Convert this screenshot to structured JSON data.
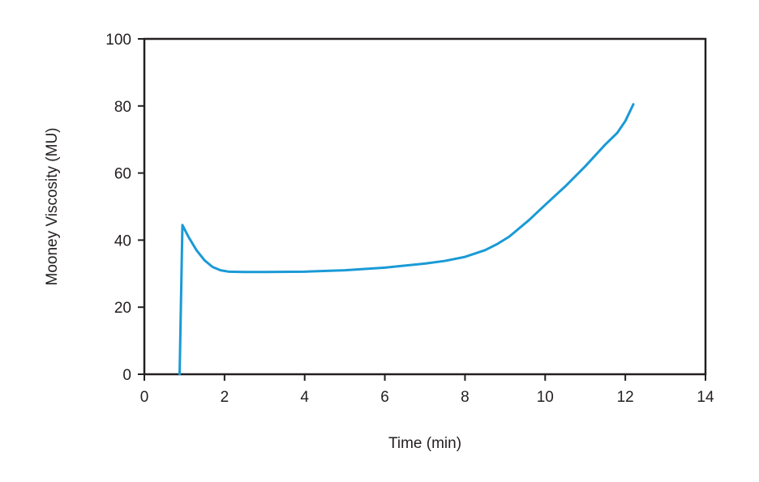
{
  "chart_data": {
    "type": "line",
    "title": "",
    "xlabel": "Time (min)",
    "ylabel": "Mooney Viscosity (MU)",
    "xlim": [
      0,
      14
    ],
    "ylim": [
      0,
      100
    ],
    "x_ticks": [
      "0",
      "2",
      "4",
      "6",
      "8",
      "10",
      "12",
      "14"
    ],
    "y_ticks": [
      "0",
      "20",
      "40",
      "60",
      "80",
      "100"
    ],
    "grid": false,
    "legend": "none",
    "series": [
      {
        "color": "#1a9ad6",
        "points": [
          [
            0.88,
            0
          ],
          [
            0.95,
            44.5
          ],
          [
            1.1,
            41.0
          ],
          [
            1.3,
            37.0
          ],
          [
            1.5,
            34.0
          ],
          [
            1.7,
            32.0
          ],
          [
            1.9,
            31.0
          ],
          [
            2.1,
            30.6
          ],
          [
            2.5,
            30.5
          ],
          [
            3.0,
            30.5
          ],
          [
            4.0,
            30.6
          ],
          [
            5.0,
            31.0
          ],
          [
            6.0,
            31.8
          ],
          [
            7.0,
            33.0
          ],
          [
            7.5,
            33.8
          ],
          [
            8.0,
            35.0
          ],
          [
            8.5,
            37.0
          ],
          [
            8.8,
            38.8
          ],
          [
            9.1,
            41.0
          ],
          [
            9.3,
            43.0
          ],
          [
            9.6,
            46.0
          ],
          [
            10.0,
            50.5
          ],
          [
            10.5,
            56.0
          ],
          [
            11.0,
            62.0
          ],
          [
            11.5,
            68.5
          ],
          [
            11.8,
            72.0
          ],
          [
            12.0,
            75.5
          ],
          [
            12.2,
            80.5
          ]
        ]
      }
    ]
  }
}
